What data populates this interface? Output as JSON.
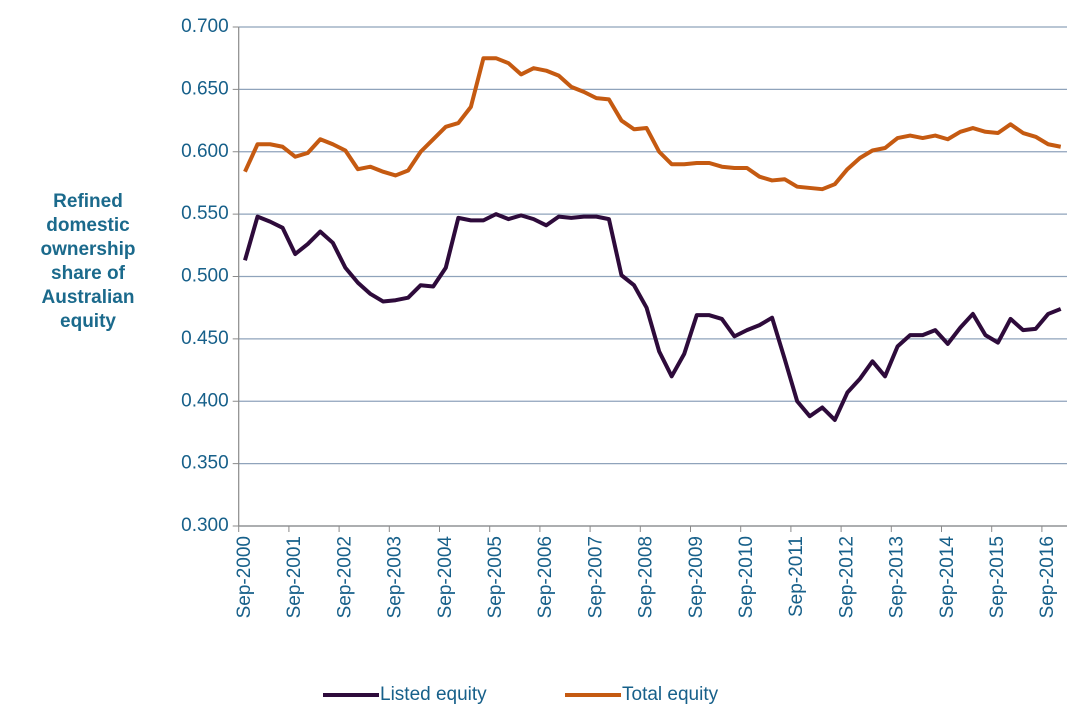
{
  "chart_data": {
    "type": "line",
    "ylabel": [
      "Refined",
      "domestic",
      "ownership",
      "share of",
      "Australian",
      "equity"
    ],
    "categories": [
      "Sep-2000",
      null,
      null,
      null,
      "Sep-2001",
      null,
      null,
      null,
      "Sep-2002",
      null,
      null,
      null,
      "Sep-2003",
      null,
      null,
      null,
      "Sep-2004",
      null,
      null,
      null,
      "Sep-2005",
      null,
      null,
      null,
      "Sep-2006",
      null,
      null,
      null,
      "Sep-2007",
      null,
      null,
      null,
      "Sep-2008",
      null,
      null,
      null,
      "Sep-2009",
      null,
      null,
      null,
      "Sep-2010",
      null,
      null,
      null,
      "Sep-2011",
      null,
      null,
      null,
      "Sep-2012",
      null,
      null,
      null,
      "Sep-2013",
      null,
      null,
      null,
      "Sep-2014",
      null,
      null,
      null,
      "Sep-2015",
      null,
      null,
      null,
      "Sep-2016",
      null
    ],
    "series": [
      {
        "name": "Listed equity",
        "color": "#2e0b3b",
        "values": [
          0.513,
          0.548,
          0.544,
          0.539,
          0.518,
          0.526,
          0.536,
          0.527,
          0.507,
          0.495,
          0.486,
          0.48,
          0.481,
          0.483,
          0.493,
          0.492,
          0.507,
          0.547,
          0.545,
          0.545,
          0.55,
          0.546,
          0.549,
          0.546,
          0.541,
          0.548,
          0.547,
          0.548,
          0.548,
          0.546,
          0.501,
          0.493,
          0.475,
          0.44,
          0.42,
          0.438,
          0.469,
          0.469,
          0.466,
          0.452,
          0.457,
          0.461,
          0.467,
          0.434,
          0.4,
          0.388,
          0.395,
          0.385,
          0.407,
          0.418,
          0.432,
          0.42,
          0.444,
          0.453,
          0.453,
          0.457,
          0.446,
          0.459,
          0.47,
          0.453,
          0.447,
          0.466,
          0.457,
          0.458,
          0.47,
          0.474
        ]
      },
      {
        "name": "Total equity",
        "color": "#c55a11",
        "values": [
          0.584,
          0.606,
          0.606,
          0.604,
          0.596,
          0.599,
          0.61,
          0.606,
          0.601,
          0.586,
          0.588,
          0.584,
          0.581,
          0.585,
          0.6,
          0.61,
          0.62,
          0.623,
          0.636,
          0.675,
          0.675,
          0.671,
          0.662,
          0.667,
          0.665,
          0.661,
          0.652,
          0.648,
          0.643,
          0.642,
          0.625,
          0.618,
          0.619,
          0.6,
          0.59,
          0.59,
          0.591,
          0.591,
          0.588,
          0.587,
          0.587,
          0.58,
          0.577,
          0.578,
          0.572,
          0.571,
          0.57,
          0.574,
          0.586,
          0.595,
          0.601,
          0.603,
          0.611,
          0.613,
          0.611,
          0.613,
          0.61,
          0.616,
          0.619,
          0.616,
          0.615,
          0.622,
          0.615,
          0.612,
          0.606,
          0.604
        ]
      }
    ],
    "ylim": [
      0.3,
      0.7
    ],
    "yticks": [
      {
        "value": 0.3,
        "label": "0.300"
      },
      {
        "value": 0.35,
        "label": "0.350"
      },
      {
        "value": 0.4,
        "label": "0.400"
      },
      {
        "value": 0.45,
        "label": "0.450"
      },
      {
        "value": 0.5,
        "label": "0.500"
      },
      {
        "value": 0.55,
        "label": "0.550"
      },
      {
        "value": 0.6,
        "label": "0.600"
      },
      {
        "value": 0.65,
        "label": "0.650"
      },
      {
        "value": 0.7,
        "label": "0.700"
      }
    ],
    "grid": true,
    "legend": "bottom"
  }
}
